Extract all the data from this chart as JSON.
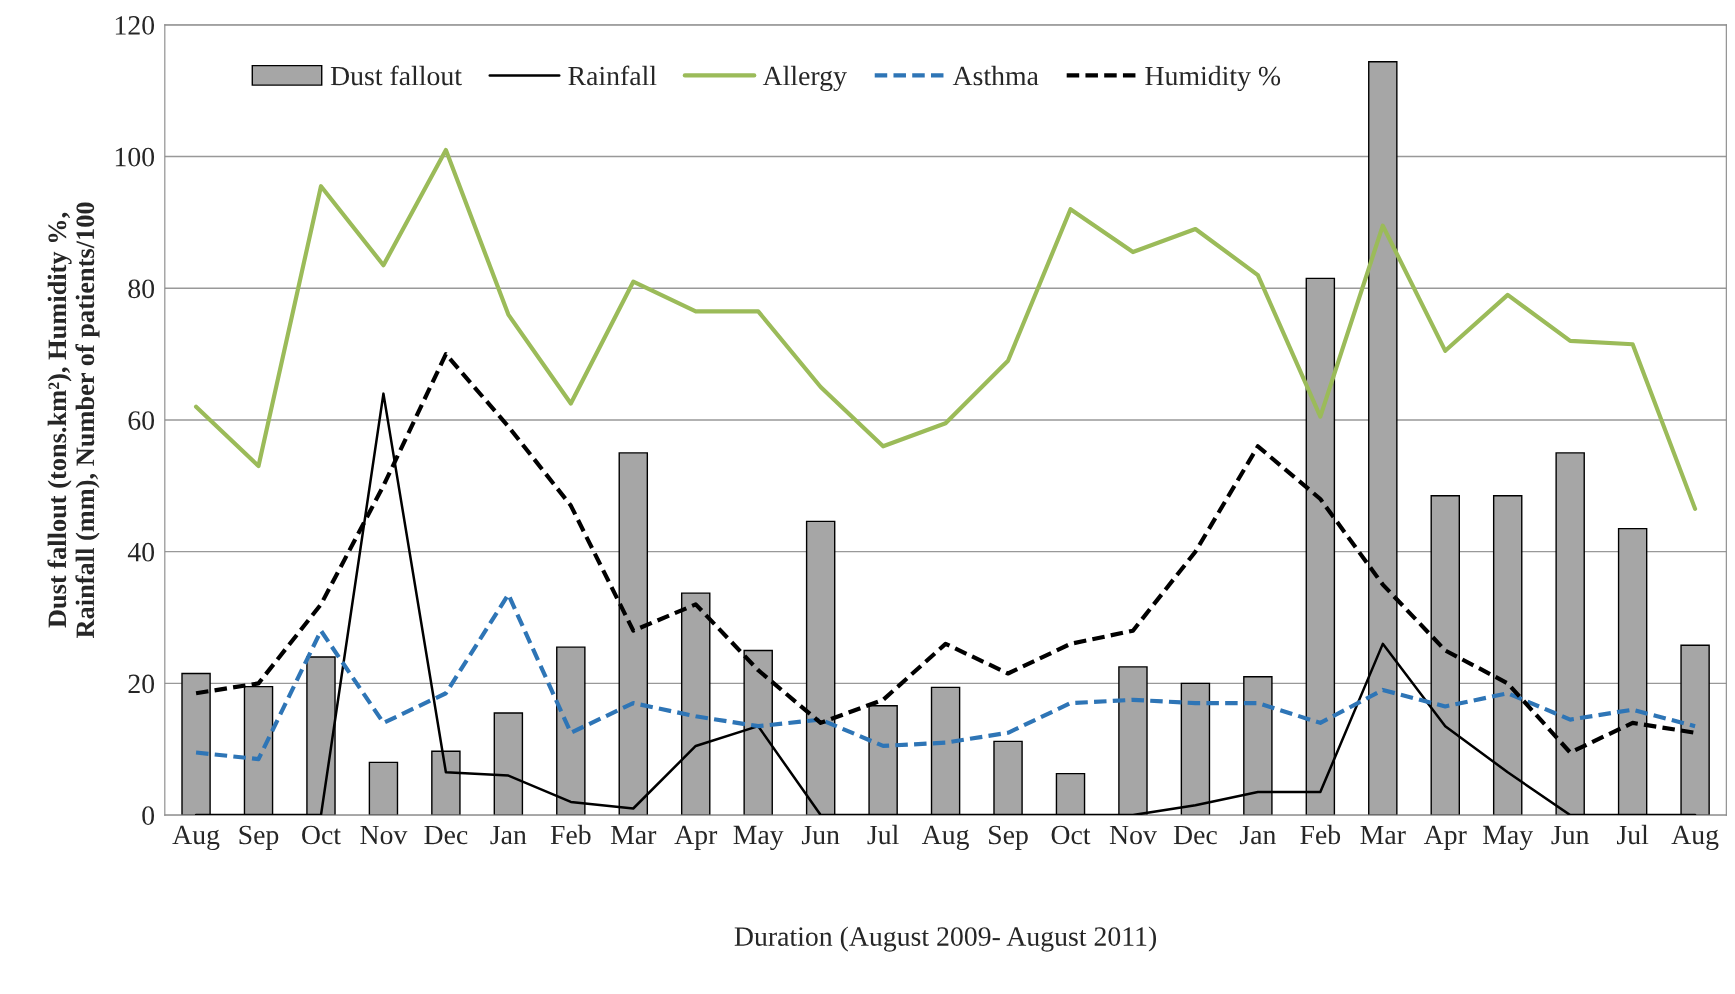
{
  "chart_data": {
    "type": "bar",
    "xlabel": "Duration (August 2009- August 2011)",
    "ylabel": "Dust fallout (tons.km²), Humidity %,\nRainfall (mm), Number of patients/100",
    "categories": [
      "Aug",
      "Sep",
      "Oct",
      "Nov",
      "Dec",
      "Jan",
      "Feb",
      "Mar",
      "Apr",
      "May",
      "Jun",
      "Jul",
      "Aug",
      "Sep",
      "Oct",
      "Nov",
      "Dec",
      "Jan",
      "Feb",
      "Mar",
      "Apr",
      "May",
      "Jun",
      "Jul",
      "Aug"
    ],
    "series": [
      {
        "name": "Dust fallout",
        "color": "#a6a6a6",
        "values": [
          21.5,
          19.5,
          24,
          8,
          9.7,
          15.5,
          25.5,
          55,
          33.7,
          25,
          44.6,
          16.6,
          19.4,
          11.2,
          6.3,
          22.5,
          20,
          21,
          81.5,
          114.4,
          48.5,
          48.5,
          55,
          43.5,
          25.8
        ]
      },
      {
        "name": "Rainfall",
        "type": "line",
        "color": "#000000",
        "line_style": "solid",
        "values": [
          0,
          0,
          0,
          64,
          6.5,
          6,
          2,
          1,
          10.5,
          13.5,
          0,
          0,
          0,
          0,
          0,
          0,
          1.5,
          3.5,
          3.5,
          26,
          13.5,
          6.5,
          0,
          0,
          0
        ]
      },
      {
        "name": "Allergy",
        "type": "line",
        "color": "#9bbb59",
        "line_style": "solid",
        "values": [
          62,
          53,
          95.5,
          83.5,
          101,
          76,
          62.5,
          81,
          76.5,
          76.5,
          65,
          56,
          59.5,
          69,
          92,
          85.5,
          89,
          82,
          60.5,
          89.5,
          70.5,
          79,
          72,
          71.5,
          46.5
        ]
      },
      {
        "name": "Asthma",
        "type": "line",
        "color": "#2e75b6",
        "line_style": "dashed",
        "values": [
          9.5,
          8.5,
          28,
          14,
          18.5,
          33.5,
          12.5,
          17,
          15,
          13.5,
          14.5,
          10.5,
          11,
          12.5,
          17,
          17.5,
          17,
          17,
          14,
          19,
          16.5,
          18.5,
          14.5,
          16,
          13.5
        ]
      },
      {
        "name": "Humidity %",
        "type": "line",
        "color": "#000000",
        "line_style": "dashed",
        "values": [
          18.5,
          20,
          32,
          50,
          70,
          59,
          47,
          28,
          32,
          22,
          14,
          17.5,
          26,
          21.5,
          26,
          28,
          40,
          56,
          48,
          35,
          25,
          20,
          9.5,
          14,
          12.5
        ]
      }
    ],
    "ylim": [
      0,
      120
    ],
    "yticks": [
      0,
      20,
      40,
      60,
      80,
      100,
      120
    ],
    "grid": "y",
    "legend": "top left",
    "marker": "none"
  }
}
